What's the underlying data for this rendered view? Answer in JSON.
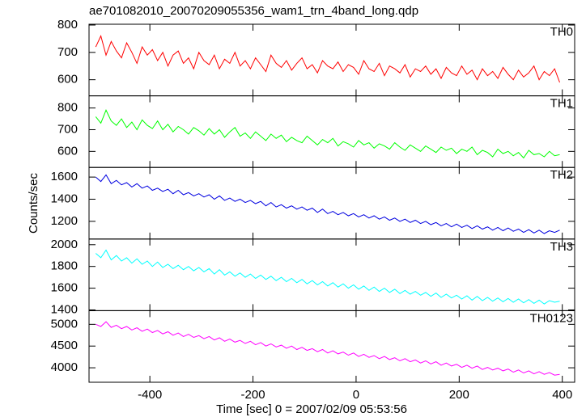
{
  "chart_data": [
    {
      "type": "line",
      "title": "ae701082010_20070209055356_wam1_trn_4band_long.qdp",
      "x": [
        -505,
        -495,
        -485,
        -475,
        -465,
        -455,
        -445,
        -435,
        -425,
        -415,
        -405,
        -395,
        -385,
        -375,
        -365,
        -355,
        -345,
        -335,
        -325,
        -315,
        -305,
        -295,
        -285,
        -275,
        -265,
        -255,
        -245,
        -235,
        -225,
        -215,
        -205,
        -195,
        -185,
        -175,
        -165,
        -155,
        -145,
        -135,
        -125,
        -115,
        -105,
        -95,
        -85,
        -75,
        -65,
        -55,
        -45,
        -35,
        -25,
        -15,
        -5,
        5,
        15,
        25,
        35,
        45,
        55,
        65,
        75,
        85,
        95,
        105,
        115,
        125,
        135,
        145,
        155,
        165,
        175,
        185,
        195,
        205,
        215,
        225,
        235,
        245,
        255,
        265,
        275,
        285,
        295,
        305,
        315,
        325,
        335,
        345,
        355,
        365,
        375,
        385,
        395
      ],
      "series": [
        {
          "name": "TH0",
          "color": "#ff0000",
          "values": [
            720,
            760,
            690,
            740,
            705,
            680,
            735,
            700,
            660,
            720,
            690,
            710,
            670,
            700,
            650,
            690,
            705,
            660,
            680,
            640,
            700,
            670,
            655,
            690,
            640,
            675,
            660,
            700,
            650,
            670,
            640,
            680,
            655,
            630,
            690,
            660,
            645,
            670,
            635,
            660,
            680,
            640,
            655,
            625,
            670,
            650,
            640,
            665,
            630,
            655,
            645,
            620,
            670,
            640,
            630,
            660,
            615,
            650,
            640,
            625,
            655,
            610,
            640,
            630,
            650,
            620,
            640,
            605,
            645,
            625,
            615,
            650,
            620,
            635,
            600,
            640,
            615,
            630,
            605,
            645,
            620,
            600,
            635,
            610,
            625,
            650,
            600,
            630,
            615,
            640,
            590
          ]
        }
      ],
      "xlim": [
        -518,
        424
      ],
      "ylim": [
        541,
        803
      ],
      "yticks": [
        600,
        700,
        800
      ]
    },
    {
      "type": "line",
      "x": [
        -505,
        -495,
        -485,
        -475,
        -465,
        -455,
        -445,
        -435,
        -425,
        -415,
        -405,
        -395,
        -385,
        -375,
        -365,
        -355,
        -345,
        -335,
        -325,
        -315,
        -305,
        -295,
        -285,
        -275,
        -265,
        -255,
        -245,
        -235,
        -225,
        -215,
        -205,
        -195,
        -185,
        -175,
        -165,
        -155,
        -145,
        -135,
        -125,
        -115,
        -105,
        -95,
        -85,
        -75,
        -65,
        -55,
        -45,
        -35,
        -25,
        -15,
        -5,
        5,
        15,
        25,
        35,
        45,
        55,
        65,
        75,
        85,
        95,
        105,
        115,
        125,
        135,
        145,
        155,
        165,
        175,
        185,
        195,
        205,
        215,
        225,
        235,
        245,
        255,
        265,
        275,
        285,
        295,
        305,
        315,
        325,
        335,
        345,
        355,
        365,
        375,
        385,
        395
      ],
      "series": [
        {
          "name": "TH1",
          "color": "#00ff00",
          "values": [
            760,
            730,
            790,
            740,
            720,
            750,
            710,
            735,
            700,
            745,
            720,
            705,
            740,
            700,
            725,
            690,
            715,
            700,
            680,
            710,
            695,
            675,
            705,
            680,
            700,
            665,
            690,
            710,
            670,
            685,
            660,
            690,
            670,
            650,
            680,
            660,
            675,
            645,
            665,
            650,
            640,
            670,
            650,
            630,
            655,
            640,
            660,
            625,
            645,
            635,
            620,
            650,
            630,
            640,
            615,
            635,
            625,
            610,
            640,
            620,
            605,
            630,
            615,
            600,
            625,
            610,
            595,
            620,
            605,
            615,
            590,
            610,
            600,
            620,
            585,
            605,
            595,
            575,
            610,
            590,
            600,
            580,
            595,
            570,
            605,
            585,
            590,
            575,
            600,
            580,
            585
          ]
        }
      ],
      "xlim": [
        -518,
        424
      ],
      "ylim": [
        526,
        856
      ],
      "yticks": [
        600,
        700,
        800
      ]
    },
    {
      "type": "line",
      "ylabel": "Counts/sec",
      "x": [
        -505,
        -495,
        -485,
        -475,
        -465,
        -455,
        -445,
        -435,
        -425,
        -415,
        -405,
        -395,
        -385,
        -375,
        -365,
        -355,
        -345,
        -335,
        -325,
        -315,
        -305,
        -295,
        -285,
        -275,
        -265,
        -255,
        -245,
        -235,
        -225,
        -215,
        -205,
        -195,
        -185,
        -175,
        -165,
        -155,
        -145,
        -135,
        -125,
        -115,
        -105,
        -95,
        -85,
        -75,
        -65,
        -55,
        -45,
        -35,
        -25,
        -15,
        -5,
        5,
        15,
        25,
        35,
        45,
        55,
        65,
        75,
        85,
        95,
        105,
        115,
        125,
        135,
        145,
        155,
        165,
        175,
        185,
        195,
        205,
        215,
        225,
        235,
        245,
        255,
        265,
        275,
        285,
        295,
        305,
        315,
        325,
        335,
        345,
        355,
        365,
        375,
        385,
        395
      ],
      "series": [
        {
          "name": "TH2",
          "color": "#0000e0",
          "values": [
            1600,
            1560,
            1620,
            1540,
            1570,
            1530,
            1550,
            1510,
            1540,
            1500,
            1520,
            1480,
            1500,
            1470,
            1490,
            1450,
            1480,
            1440,
            1460,
            1430,
            1450,
            1420,
            1440,
            1400,
            1430,
            1390,
            1410,
            1380,
            1400,
            1370,
            1390,
            1360,
            1380,
            1340,
            1370,
            1330,
            1350,
            1320,
            1340,
            1310,
            1330,
            1300,
            1320,
            1280,
            1310,
            1270,
            1290,
            1260,
            1280,
            1250,
            1270,
            1240,
            1260,
            1230,
            1250,
            1220,
            1240,
            1210,
            1230,
            1200,
            1220,
            1190,
            1210,
            1180,
            1200,
            1170,
            1190,
            1160,
            1180,
            1150,
            1175,
            1145,
            1165,
            1135,
            1160,
            1130,
            1150,
            1120,
            1145,
            1115,
            1140,
            1110,
            1130,
            1100,
            1125,
            1095,
            1120,
            1090,
            1115,
            1100,
            1120
          ]
        }
      ],
      "xlim": [
        -518,
        424
      ],
      "ylim": [
        1040,
        1687
      ],
      "yticks": [
        1200,
        1400,
        1600
      ]
    },
    {
      "type": "line",
      "x": [
        -505,
        -495,
        -485,
        -475,
        -465,
        -455,
        -445,
        -435,
        -425,
        -415,
        -405,
        -395,
        -385,
        -375,
        -365,
        -355,
        -345,
        -335,
        -325,
        -315,
        -305,
        -295,
        -285,
        -275,
        -265,
        -255,
        -245,
        -235,
        -225,
        -215,
        -205,
        -195,
        -185,
        -175,
        -165,
        -155,
        -145,
        -135,
        -125,
        -115,
        -105,
        -95,
        -85,
        -75,
        -65,
        -55,
        -45,
        -35,
        -25,
        -15,
        -5,
        5,
        15,
        25,
        35,
        45,
        55,
        65,
        75,
        85,
        95,
        105,
        115,
        125,
        135,
        145,
        155,
        165,
        175,
        185,
        195,
        205,
        215,
        225,
        235,
        245,
        255,
        265,
        275,
        285,
        295,
        305,
        315,
        325,
        335,
        345,
        355,
        365,
        375,
        385,
        395
      ],
      "series": [
        {
          "name": "TH3",
          "color": "#00ffff",
          "values": [
            1920,
            1880,
            1950,
            1860,
            1900,
            1850,
            1880,
            1830,
            1870,
            1820,
            1850,
            1800,
            1840,
            1790,
            1820,
            1780,
            1810,
            1770,
            1800,
            1760,
            1790,
            1750,
            1780,
            1730,
            1770,
            1720,
            1750,
            1710,
            1740,
            1700,
            1730,
            1690,
            1720,
            1680,
            1710,
            1670,
            1700,
            1660,
            1690,
            1650,
            1680,
            1640,
            1670,
            1630,
            1660,
            1620,
            1650,
            1610,
            1640,
            1600,
            1630,
            1590,
            1620,
            1580,
            1610,
            1570,
            1600,
            1560,
            1590,
            1550,
            1580,
            1545,
            1570,
            1535,
            1560,
            1525,
            1555,
            1515,
            1545,
            1510,
            1535,
            1500,
            1530,
            1490,
            1525,
            1485,
            1515,
            1480,
            1510,
            1475,
            1505,
            1470,
            1500,
            1465,
            1495,
            1460,
            1490,
            1455,
            1485,
            1470,
            1480
          ]
        }
      ],
      "xlim": [
        -518,
        424
      ],
      "ylim": [
        1393,
        2052
      ],
      "yticks": [
        1400,
        1600,
        1800,
        2000
      ]
    },
    {
      "type": "line",
      "xlabel": "Time [sec] 0 = 2007/02/09 05:53:56",
      "x": [
        -505,
        -495,
        -485,
        -475,
        -465,
        -455,
        -445,
        -435,
        -425,
        -415,
        -405,
        -395,
        -385,
        -375,
        -365,
        -355,
        -345,
        -335,
        -325,
        -315,
        -305,
        -295,
        -285,
        -275,
        -265,
        -255,
        -245,
        -235,
        -225,
        -215,
        -205,
        -195,
        -185,
        -175,
        -165,
        -155,
        -145,
        -135,
        -125,
        -115,
        -105,
        -95,
        -85,
        -75,
        -65,
        -55,
        -45,
        -35,
        -25,
        -15,
        -5,
        5,
        15,
        25,
        35,
        45,
        55,
        65,
        75,
        85,
        95,
        105,
        115,
        125,
        135,
        145,
        155,
        165,
        175,
        185,
        195,
        205,
        215,
        225,
        235,
        245,
        255,
        265,
        275,
        285,
        295,
        305,
        315,
        325,
        335,
        345,
        355,
        365,
        375,
        385,
        395
      ],
      "series": [
        {
          "name": "TH0123",
          "color": "#ff00ff",
          "values": [
            5000,
            4950,
            5060,
            4930,
            4980,
            4900,
            4950,
            4870,
            4920,
            4840,
            4890,
            4810,
            4860,
            4780,
            4830,
            4750,
            4800,
            4720,
            4770,
            4700,
            4740,
            4670,
            4720,
            4640,
            4690,
            4610,
            4660,
            4590,
            4630,
            4560,
            4610,
            4530,
            4580,
            4500,
            4550,
            4480,
            4520,
            4450,
            4500,
            4420,
            4470,
            4400,
            4440,
            4370,
            4420,
            4340,
            4390,
            4320,
            4360,
            4290,
            4340,
            4260,
            4310,
            4240,
            4280,
            4210,
            4260,
            4190,
            4230,
            4160,
            4210,
            4140,
            4180,
            4110,
            4160,
            4090,
            4140,
            4060,
            4110,
            4040,
            4080,
            4010,
            4060,
            3990,
            4040,
            3960,
            4010,
            3950,
            3990,
            3930,
            3970,
            3900,
            3950,
            3880,
            3930,
            3860,
            3910,
            3850,
            3890,
            3830,
            3850
          ]
        }
      ],
      "xlim": [
        -518,
        424
      ],
      "ylim": [
        3667,
        5315
      ],
      "yticks": [
        4000,
        4500,
        5000
      ],
      "xticks": [
        -400,
        -200,
        0,
        200,
        400
      ]
    }
  ]
}
